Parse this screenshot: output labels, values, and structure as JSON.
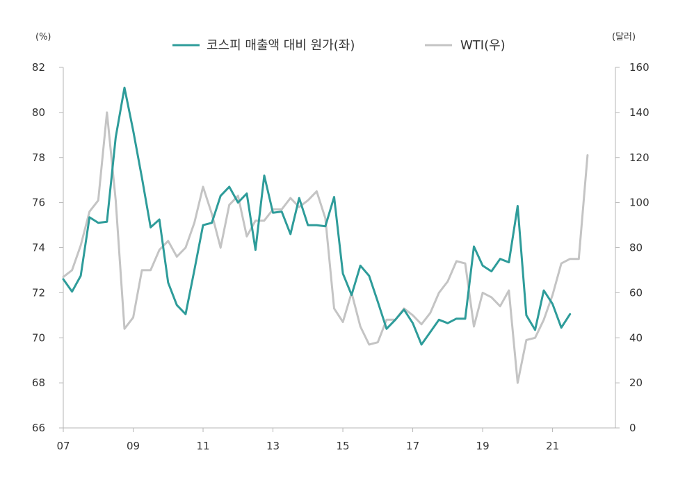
{
  "chart_data": {
    "type": "line",
    "left_unit": "(%)",
    "right_unit": "(달러)",
    "x_ticks": [
      "07",
      "09",
      "11",
      "13",
      "15",
      "17",
      "19",
      "21"
    ],
    "x_range": [
      2007.0,
      2022.5
    ],
    "left_axis": {
      "range": [
        66,
        82
      ],
      "ticks": [
        "66",
        "68",
        "70",
        "72",
        "74",
        "76",
        "78",
        "80",
        "82"
      ]
    },
    "right_axis": {
      "range": [
        0,
        160
      ],
      "ticks": [
        "0",
        "20",
        "40",
        "60",
        "80",
        "100",
        "120",
        "140",
        "160"
      ]
    },
    "series": [
      {
        "name": "코스피 매출액 대비 원가(좌)",
        "axis": "left",
        "color": "#2e9c9a",
        "points": [
          [
            2007.0,
            72.6
          ],
          [
            2007.25,
            72.05
          ],
          [
            2007.5,
            72.75
          ],
          [
            2007.75,
            75.35
          ],
          [
            2008.0,
            75.1
          ],
          [
            2008.25,
            75.15
          ],
          [
            2008.5,
            78.9
          ],
          [
            2008.75,
            81.1
          ],
          [
            2009.0,
            79.2
          ],
          [
            2009.25,
            77.1
          ],
          [
            2009.5,
            74.9
          ],
          [
            2009.75,
            75.25
          ],
          [
            2010.0,
            72.45
          ],
          [
            2010.25,
            71.45
          ],
          [
            2010.5,
            71.05
          ],
          [
            2010.75,
            73.0
          ],
          [
            2011.0,
            75.0
          ],
          [
            2011.25,
            75.1
          ],
          [
            2011.5,
            76.3
          ],
          [
            2011.75,
            76.7
          ],
          [
            2012.0,
            76.0
          ],
          [
            2012.25,
            76.4
          ],
          [
            2012.5,
            73.9
          ],
          [
            2012.75,
            77.2
          ],
          [
            2013.0,
            75.55
          ],
          [
            2013.25,
            75.6
          ],
          [
            2013.5,
            74.6
          ],
          [
            2013.75,
            76.2
          ],
          [
            2014.0,
            75.0
          ],
          [
            2014.25,
            75.0
          ],
          [
            2014.5,
            74.95
          ],
          [
            2014.75,
            76.25
          ],
          [
            2015.0,
            72.85
          ],
          [
            2015.25,
            71.9
          ],
          [
            2015.5,
            73.2
          ],
          [
            2015.75,
            72.75
          ],
          [
            2016.0,
            71.6
          ],
          [
            2016.25,
            70.4
          ],
          [
            2016.5,
            70.8
          ],
          [
            2016.75,
            71.25
          ],
          [
            2017.0,
            70.65
          ],
          [
            2017.25,
            69.7
          ],
          [
            2017.5,
            70.25
          ],
          [
            2017.75,
            70.8
          ],
          [
            2018.0,
            70.65
          ],
          [
            2018.25,
            70.85
          ],
          [
            2018.5,
            70.85
          ],
          [
            2018.75,
            74.05
          ],
          [
            2019.0,
            73.2
          ],
          [
            2019.25,
            72.95
          ],
          [
            2019.5,
            73.5
          ],
          [
            2019.75,
            73.35
          ],
          [
            2020.0,
            75.85
          ],
          [
            2020.25,
            71.0
          ],
          [
            2020.5,
            70.35
          ],
          [
            2020.75,
            72.1
          ],
          [
            2021.0,
            71.5
          ],
          [
            2021.25,
            70.45
          ],
          [
            2021.5,
            71.05
          ]
        ]
      },
      {
        "name": "WTI(우)",
        "axis": "right",
        "color": "#c4c4c4",
        "points": [
          [
            2007.0,
            67
          ],
          [
            2007.25,
            70
          ],
          [
            2007.5,
            81
          ],
          [
            2007.75,
            96
          ],
          [
            2008.0,
            101
          ],
          [
            2008.25,
            140
          ],
          [
            2008.5,
            101
          ],
          [
            2008.75,
            44
          ],
          [
            2009.0,
            49
          ],
          [
            2009.25,
            70
          ],
          [
            2009.5,
            70
          ],
          [
            2009.75,
            79
          ],
          [
            2010.0,
            83
          ],
          [
            2010.25,
            76
          ],
          [
            2010.5,
            80
          ],
          [
            2010.75,
            91
          ],
          [
            2011.0,
            107
          ],
          [
            2011.25,
            95
          ],
          [
            2011.5,
            80
          ],
          [
            2011.75,
            99
          ],
          [
            2012.0,
            103
          ],
          [
            2012.25,
            85
          ],
          [
            2012.5,
            92
          ],
          [
            2012.75,
            92
          ],
          [
            2013.0,
            97
          ],
          [
            2013.25,
            97
          ],
          [
            2013.5,
            102
          ],
          [
            2013.75,
            98
          ],
          [
            2014.0,
            101
          ],
          [
            2014.25,
            105
          ],
          [
            2014.5,
            93
          ],
          [
            2014.75,
            53
          ],
          [
            2015.0,
            47
          ],
          [
            2015.25,
            60
          ],
          [
            2015.5,
            45
          ],
          [
            2015.75,
            37
          ],
          [
            2016.0,
            38
          ],
          [
            2016.25,
            48
          ],
          [
            2016.5,
            48
          ],
          [
            2016.75,
            53
          ],
          [
            2017.0,
            50
          ],
          [
            2017.25,
            46
          ],
          [
            2017.5,
            51
          ],
          [
            2017.75,
            60
          ],
          [
            2018.0,
            65
          ],
          [
            2018.25,
            74
          ],
          [
            2018.5,
            73
          ],
          [
            2018.75,
            45
          ],
          [
            2019.0,
            60
          ],
          [
            2019.25,
            58
          ],
          [
            2019.5,
            54
          ],
          [
            2019.75,
            61
          ],
          [
            2020.0,
            20
          ],
          [
            2020.25,
            39
          ],
          [
            2020.5,
            40
          ],
          [
            2020.75,
            48
          ],
          [
            2021.0,
            59
          ],
          [
            2021.25,
            73
          ],
          [
            2021.5,
            75
          ],
          [
            2021.75,
            75
          ],
          [
            2022.0,
            121
          ]
        ]
      }
    ]
  }
}
